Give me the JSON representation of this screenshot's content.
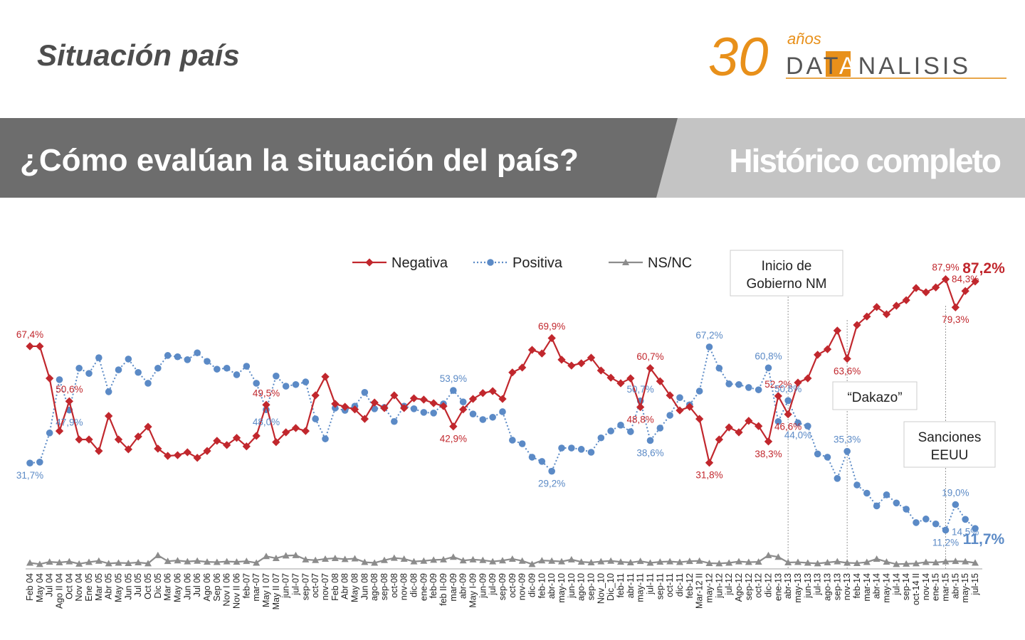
{
  "header": {
    "title": "Situación país",
    "logo": {
      "number": "30",
      "years": "años",
      "name_parts": [
        "DAT",
        "A",
        "NALISIS"
      ]
    }
  },
  "banner": {
    "question": "¿Cómo evalúan la situación del país?",
    "subtitle": "Histórico completo"
  },
  "chart_data": {
    "type": "line",
    "categories": [
      "Feb 04",
      "May 04",
      "Jul 04",
      "Ago II 04",
      "Oct 04",
      "Nov 04",
      "Ene 05",
      "Mar 05",
      "Abr 05",
      "May 05",
      "Jun 05",
      "Jul 05",
      "Oct 05",
      "Dic 05",
      "Mar 06",
      "May 06",
      "Jun 06",
      "Jul 06",
      "Ago 06",
      "Sep 06",
      "Nov I 06",
      "Nov II 06",
      "feb-07",
      "mar-07",
      "May I 07",
      "May II 07",
      "jun-07",
      "jul-07",
      "sep-07",
      "oct-07",
      "nov-07",
      "Feb 08",
      "Abr 08",
      "May 08",
      "Jun 08",
      "ago-08",
      "sep-08",
      "oct-08",
      "nov-08",
      "dic-08",
      "ene-09",
      "feb-09",
      "feb II-09",
      "mar-09",
      "abr-09",
      "May I-09",
      "jun-09",
      "jul-09",
      "sep-09",
      "oct-09",
      "nov-09",
      "dic-09",
      "feb-10",
      "abr-10",
      "may-10",
      "jun-10",
      "ago-10",
      "sep-10",
      "Nov_10",
      "Dic_10",
      "feb-11",
      "abr-11",
      "may-11",
      "jul-11",
      "sep-11",
      "oct-11",
      "dic-11",
      "feb-12",
      "Mar-12 II",
      "may-12",
      "jun-12",
      "jul-12",
      "Ago-12",
      "sep-12",
      "oct-12",
      "dic-12",
      "ene-13",
      "abr-13",
      "may-13",
      "jun-13",
      "jul-13",
      "ago-13",
      "sep-13",
      "nov-13",
      "feb-14",
      "mar-14",
      "abr-14",
      "may-14",
      "jul-14",
      "sep-14",
      "oct-14 II",
      "nov-14",
      "ene-15",
      "mar-15",
      "abr-15",
      "may-15",
      "jul-15"
    ],
    "ylim": [
      0,
      100
    ],
    "series": [
      {
        "name": "Negativa",
        "color": "#c1272d",
        "marker": "diamond",
        "dash": "solid",
        "values": [
          67.4,
          67.4,
          57.6,
          41.5,
          50.6,
          38.9,
          38.9,
          35.4,
          46.1,
          38.9,
          35.9,
          39.8,
          42.8,
          36.1,
          33.9,
          34.1,
          35.0,
          33.3,
          35.4,
          38.5,
          37.2,
          39.4,
          36.8,
          40.0,
          49.5,
          38.1,
          41.1,
          42.4,
          41.5,
          52.4,
          58.1,
          49.8,
          48.9,
          48.1,
          45.2,
          50.2,
          48.5,
          52.4,
          48.5,
          51.5,
          51.1,
          50.0,
          49.1,
          42.9,
          48.1,
          51.3,
          53.1,
          53.7,
          51.3,
          59.4,
          60.9,
          66.3,
          65.2,
          69.9,
          63.3,
          61.5,
          62.2,
          63.9,
          60.0,
          57.8,
          56.1,
          57.6,
          48.8,
          60.7,
          56.7,
          52.4,
          47.8,
          48.9,
          45.2,
          31.8,
          38.9,
          42.6,
          41.1,
          44.6,
          43.0,
          38.3,
          52.2,
          46.6,
          56.3,
          57.6,
          64.8,
          66.5,
          72.2,
          63.6,
          73.9,
          76.5,
          79.4,
          77.2,
          79.8,
          81.5,
          85.2,
          83.9,
          85.4,
          87.9,
          79.3,
          84.3,
          87.2
        ],
        "value_labels": [
          "67,4%",
          null,
          null,
          null,
          "50,6%",
          null,
          null,
          null,
          null,
          null,
          null,
          null,
          null,
          null,
          null,
          null,
          null,
          null,
          null,
          null,
          null,
          null,
          null,
          null,
          "49,5%",
          null,
          null,
          null,
          null,
          null,
          null,
          null,
          null,
          null,
          null,
          null,
          null,
          null,
          null,
          null,
          null,
          null,
          null,
          "42,9%",
          null,
          null,
          null,
          null,
          null,
          null,
          null,
          null,
          null,
          "69,9%",
          null,
          null,
          null,
          null,
          null,
          null,
          null,
          null,
          "48,8%",
          "60,7%",
          null,
          null,
          null,
          null,
          null,
          "31,8%",
          null,
          null,
          null,
          null,
          null,
          "38,3%",
          "52,2%",
          "46,6%",
          null,
          null,
          null,
          null,
          null,
          "63,6%",
          null,
          null,
          null,
          null,
          null,
          null,
          null,
          null,
          null,
          "87,9%",
          "79,3%",
          "84,3%",
          "87,2%"
        ]
      },
      {
        "name": "Positiva",
        "color": "#5b8ac6",
        "marker": "circle",
        "dash": "dotted",
        "values": [
          31.7,
          32.0,
          40.9,
          57.2,
          47.9,
          60.7,
          59.1,
          63.9,
          53.5,
          60.2,
          63.5,
          59.4,
          56.1,
          60.7,
          64.6,
          64.2,
          63.3,
          65.4,
          62.8,
          60.4,
          60.7,
          58.7,
          61.3,
          56.1,
          48.0,
          58.3,
          55.2,
          55.7,
          56.5,
          45.2,
          39.1,
          48.5,
          47.8,
          49.1,
          53.3,
          48.3,
          48.7,
          44.4,
          49.1,
          48.3,
          47.2,
          47.0,
          49.8,
          53.9,
          50.4,
          46.7,
          45.0,
          45.7,
          47.4,
          38.7,
          37.6,
          33.5,
          32.2,
          29.2,
          36.3,
          36.3,
          35.9,
          35.0,
          39.4,
          41.5,
          43.3,
          41.3,
          50.7,
          38.6,
          42.4,
          46.3,
          51.7,
          49.5,
          53.7,
          67.2,
          60.7,
          55.9,
          55.7,
          54.8,
          54.1,
          60.8,
          44.4,
          50.8,
          44.0,
          43.0,
          34.5,
          33.5,
          27.0,
          35.3,
          25.0,
          22.5,
          18.6,
          22.0,
          19.5,
          17.6,
          13.5,
          14.6,
          13.1,
          11.2,
          19.0,
          14.5,
          11.7
        ],
        "value_labels": [
          "31,7%",
          null,
          null,
          null,
          "47,9%",
          null,
          null,
          null,
          null,
          null,
          null,
          null,
          null,
          null,
          null,
          null,
          null,
          null,
          null,
          null,
          null,
          null,
          null,
          null,
          "48,0%",
          null,
          null,
          null,
          null,
          null,
          null,
          null,
          null,
          null,
          null,
          null,
          null,
          null,
          null,
          null,
          null,
          null,
          null,
          "53,9%",
          null,
          null,
          null,
          null,
          null,
          null,
          null,
          null,
          null,
          "29,2%",
          null,
          null,
          null,
          null,
          null,
          null,
          null,
          null,
          "50,7%",
          "38,6%",
          null,
          null,
          null,
          null,
          null,
          "67,2%",
          null,
          null,
          null,
          null,
          null,
          "60,8%",
          null,
          "50,8%",
          "44,0%",
          null,
          null,
          null,
          null,
          "35,3%",
          null,
          null,
          null,
          null,
          null,
          null,
          null,
          null,
          null,
          "11,2%",
          "19,0%",
          "14,5%",
          "11,7%"
        ]
      },
      {
        "name": "NS/NC",
        "color": "#8c8c8c",
        "marker": "triangle",
        "dash": "solid",
        "values": [
          1.2,
          0.8,
          1.5,
          1.3,
          1.6,
          0.9,
          1.4,
          1.8,
          1.0,
          1.2,
          1.1,
          1.3,
          1.0,
          3.5,
          1.7,
          1.9,
          1.6,
          1.8,
          1.5,
          1.4,
          1.6,
          1.5,
          1.7,
          1.2,
          3.2,
          2.6,
          3.4,
          3.5,
          2.2,
          2.0,
          2.4,
          2.6,
          2.3,
          2.5,
          1.4,
          1.2,
          2.0,
          2.7,
          2.4,
          1.6,
          1.8,
          2.1,
          2.2,
          3.0,
          1.9,
          2.2,
          2.0,
          1.6,
          1.9,
          2.4,
          1.8,
          0.8,
          1.9,
          1.8,
          1.6,
          2.2,
          1.5,
          1.3,
          1.6,
          1.8,
          1.5,
          1.3,
          1.7,
          1.2,
          1.5,
          1.6,
          1.4,
          1.7,
          1.8,
          1.1,
          1.0,
          1.2,
          1.6,
          1.4,
          1.5,
          3.5,
          3.0,
          1.3,
          1.4,
          1.2,
          1.0,
          1.3,
          1.6,
          1.2,
          1.1,
          1.4,
          2.4,
          1.5,
          0.8,
          0.9,
          1.0,
          1.4,
          1.3,
          1.6,
          1.7,
          1.6,
          1.2
        ]
      }
    ],
    "annotations": [
      {
        "lines": [
          "Inicio de",
          "Gobierno NM"
        ],
        "category": "abr-13"
      },
      {
        "lines": [
          "“Dakazo”"
        ],
        "category": "nov-13"
      },
      {
        "lines": [
          "Sanciones",
          "EEUU"
        ],
        "category": "mar-15"
      }
    ]
  }
}
